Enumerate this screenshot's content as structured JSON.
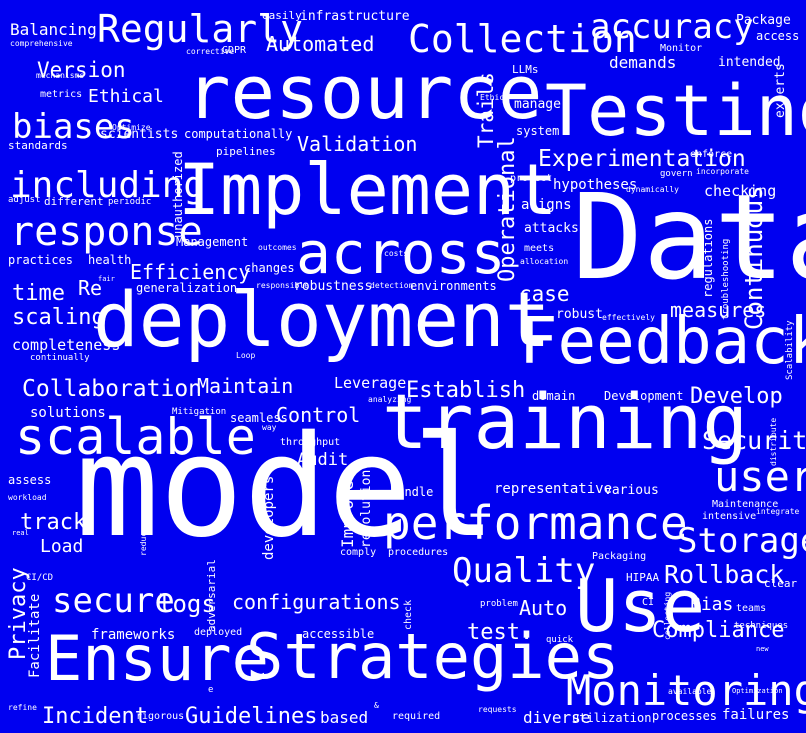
{
  "colors": {
    "background": "#0000f0",
    "text": "#ffffff"
  },
  "words": {
    "model": "model",
    "data": "Data",
    "training": "training",
    "deployment": "deployment",
    "resource": "resource",
    "testing": "Testing",
    "implement": "Implement",
    "feedback": "Feedback",
    "ensure": "Ensure",
    "strategies": "Strategies",
    "use": "Use",
    "across": "across",
    "performance": "performance",
    "scalable": "scalable",
    "monitoring": "Monitoring",
    "regularly": "Regularly",
    "collection": "Collection",
    "accuracy": "accuracy",
    "including": "including",
    "response": "response",
    "biases": "biases",
    "storage": "Storage",
    "quality": "Quality",
    "user": "user",
    "secure": "secure",
    "continuous": "Continuous",
    "operational": "Operational",
    "experimentation": "Experimentation",
    "collaboration": "Collaboration",
    "security": "Security",
    "rollback": "Rollback",
    "compliance": "Compliance",
    "incident": "Incident",
    "guidelines": "Guidelines",
    "configurations": "configurations",
    "logs": "logs",
    "privacy": "Privacy",
    "version": "Version",
    "automated": "Automated",
    "validation": "Validation",
    "efficiency": "Efficiency",
    "establish": "Establish",
    "develop": "Develop",
    "maintain": "Maintain",
    "control": "Control",
    "measures": "measures",
    "case": "case",
    "time": "time",
    "scaling": "scaling",
    "track": "track",
    "load": "Load",
    "test": "test.",
    "auto": "Auto",
    "bias": "Bias",
    "balancing": "Balancing",
    "ethical": "Ethical",
    "trails": "Trails",
    "re": "Re",
    "audit": "Audit",
    "leverage": "Leverage",
    "representative": "representative",
    "completeness": "completeness",
    "solutions": "solutions",
    "frameworks": "frameworks",
    "based": "based",
    "diverse": "diverse",
    "facilitate": "Facilitate",
    "hypotheses": "hypotheses",
    "checking": "checking",
    "aligns": "aligns",
    "including_small": "infrastructure",
    "easily": "easily",
    "package": "Package",
    "access": "access",
    "llms": "LLMs",
    "manage": "manage",
    "system": "system",
    "intended": "intended",
    "demands": "demands",
    "experts": "experts",
    "monitor": "Monitor",
    "computationally": "computationally",
    "pipelines": "pipelines",
    "scientists": "scientists",
    "standards": "standards",
    "metrics": "metrics",
    "mechanisms": "mechanisms",
    "comprehensive": "comprehensive",
    "gdpr": "GDPR",
    "corrective": "corrective",
    "optimize": "Optimize",
    "ethics": "Ethics",
    "unauthorized": "unauthorized",
    "protect": "protect",
    "enforce": "enforce",
    "incorporate": "incorporate",
    "govern": "govern",
    "dynamically": "dynamically",
    "attacks": "attacks",
    "meets": "meets",
    "allocation": "allocation",
    "regulations": "regulations",
    "troubleshooting": "troubleshooting",
    "scalability": "Scalability",
    "management": "Management",
    "outcomes": "outcomes",
    "costs": "costs",
    "changes": "changes",
    "generalization": "generalization",
    "robustness": "robustness",
    "environments": "environments",
    "detection": "detection",
    "responsible": "responsible",
    "practices": "practices",
    "health": "health",
    "adjust": "adjust",
    "different": "different",
    "periodic": "periodic",
    "fair": "fair",
    "continually": "continually",
    "robust": "robust",
    "effectively": "effectively",
    "domain": "domain",
    "development": "Development",
    "analyzing": "analyzing",
    "loop": "Loop",
    "seamless": "seamless",
    "mitigation": "Mitigation",
    "throughput": "throughput",
    "way": "way",
    "developers": "developers",
    "improve": "Improve",
    "resolution": "resolution",
    "handle": "handle",
    "various": "various",
    "distribute": "distribute",
    "maintenance": "Maintenance",
    "intensive": "intensive",
    "integrate": "integrate",
    "assess": "assess",
    "workload": "workload",
    "real": "real",
    "reduce": "reduce",
    "adversarial": "adversarial",
    "comply": "comply",
    "procedures": "procedures",
    "packaging": "Packaging",
    "hipaa": "HIPAA",
    "clear": "clear",
    "cicd": "CI/CD",
    "ci": "CI",
    "problem": "problem",
    "collecting": "collecting",
    "teams": "teams",
    "techniques": "techniques",
    "new": "new",
    "deployed": "deployed",
    "accessible": "accessible",
    "check": "check",
    "quick": "quick",
    "available": "available",
    "optimization": "Optimization",
    "rigorous": "rigorous",
    "required": "required",
    "requests": "requests",
    "utilization": "utilization",
    "processes": "processes",
    "failures": "failures",
    "refine": "refine",
    "e": "e",
    "amp": "&"
  }
}
